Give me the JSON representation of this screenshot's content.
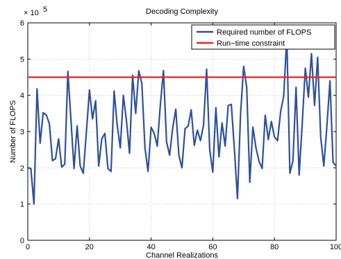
{
  "chart_data": {
    "type": "line",
    "title": "Decoding Complexity",
    "xlabel": "Channel Realizations",
    "ylabel": "Number of FLOPS",
    "y_exponent_label": "× 10",
    "y_exponent": "5",
    "xlim": [
      0,
      100
    ],
    "ylim": [
      0,
      6
    ],
    "x_ticks": [
      "0",
      "20",
      "40",
      "60",
      "80",
      "100"
    ],
    "y_ticks": [
      "0",
      "1",
      "2",
      "3",
      "4",
      "5",
      "6"
    ],
    "grid": true,
    "legend_position": "top-right",
    "series": [
      {
        "name": "Required number of FLOPS",
        "color": "#2e4f9e",
        "x": [
          0,
          1,
          2,
          3,
          4,
          5,
          6,
          7,
          8,
          9,
          10,
          11,
          12,
          13,
          14,
          15,
          16,
          17,
          18,
          19,
          20,
          21,
          22,
          23,
          24,
          25,
          26,
          27,
          28,
          29,
          30,
          31,
          32,
          33,
          34,
          35,
          36,
          37,
          38,
          39,
          40,
          41,
          42,
          43,
          44,
          45,
          46,
          47,
          48,
          49,
          50,
          51,
          52,
          53,
          54,
          55,
          56,
          57,
          58,
          59,
          60,
          61,
          62,
          63,
          64,
          65,
          66,
          67,
          68,
          69,
          70,
          71,
          72,
          73,
          74,
          75,
          76,
          77,
          78,
          79,
          80,
          81,
          82,
          83,
          84,
          85,
          86,
          87,
          88,
          89,
          90,
          91,
          92,
          93,
          94,
          95,
          96,
          97,
          98,
          99,
          100
        ],
        "y": [
          2.0,
          1.98,
          1.0,
          4.18,
          2.68,
          3.52,
          3.46,
          3.22,
          2.2,
          2.25,
          2.8,
          2.02,
          2.1,
          4.66,
          3.32,
          1.98,
          3.16,
          2.05,
          1.85,
          2.98,
          4.15,
          3.35,
          3.85,
          2.05,
          2.8,
          2.95,
          1.98,
          1.9,
          4.12,
          3.18,
          2.55,
          4.0,
          3.3,
          2.4,
          4.55,
          3.5,
          4.68,
          4.32,
          2.55,
          1.9,
          3.12,
          2.95,
          2.6,
          3.75,
          4.68,
          2.72,
          2.35,
          3.1,
          3.62,
          2.35,
          2.0,
          3.08,
          3.15,
          3.6,
          2.62,
          3.04,
          2.75,
          3.18,
          4.72,
          2.5,
          1.88,
          3.66,
          2.3,
          3.24,
          2.6,
          3.72,
          3.75,
          2.52,
          1.15,
          3.48,
          4.8,
          4.22,
          1.6,
          3.12,
          2.55,
          2.18,
          1.98,
          3.45,
          2.78,
          3.28,
          2.85,
          2.75,
          3.55,
          3.98,
          5.62,
          1.85,
          2.2,
          4.22,
          1.8,
          3.22,
          4.75,
          3.95,
          5.15,
          3.72,
          5.05,
          2.85,
          2.05,
          3.15,
          4.4,
          2.15,
          2.05
        ]
      },
      {
        "name": "Run−time constraint",
        "color": "#e8231f",
        "x": [
          0,
          100
        ],
        "y": [
          4.5,
          4.5
        ]
      }
    ]
  }
}
